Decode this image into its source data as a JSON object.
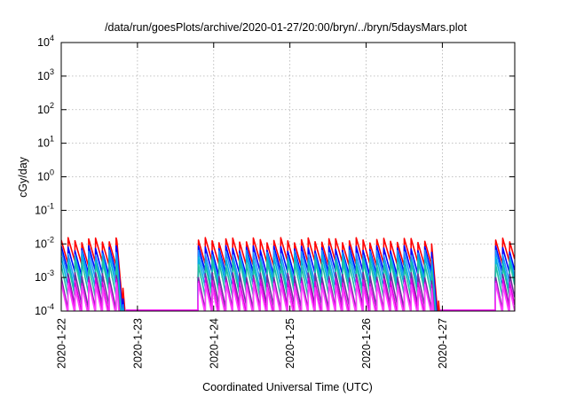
{
  "chart_data": {
    "type": "line",
    "title": "/data/run/goesPlots/archive/2020-01-27/20:00/bryn/../bryn/5daysMars.plot",
    "xlabel": "Coordinated Universal Time (UTC)",
    "ylabel": "cGy/day",
    "y_scale": "log",
    "ylim": [
      0.0001,
      10000
    ],
    "xlim": [
      0,
      5.95
    ],
    "x_origin": "2020-01-22",
    "grid": true,
    "x_ticks": [
      {
        "x": 0,
        "label": "2020-1-22"
      },
      {
        "x": 1,
        "label": "2020-1-23"
      },
      {
        "x": 2,
        "label": "2020-1-24"
      },
      {
        "x": 3,
        "label": "2020-1-25"
      },
      {
        "x": 4,
        "label": "2020-1-26"
      },
      {
        "x": 5,
        "label": "2020-1-27"
      }
    ],
    "y_ticks": [
      {
        "exp": "4"
      },
      {
        "exp": "3"
      },
      {
        "exp": "2"
      },
      {
        "exp": "1"
      },
      {
        "exp": "0"
      },
      {
        "exp": "-1"
      },
      {
        "exp": "-2"
      },
      {
        "exp": "-3"
      },
      {
        "exp": "-4"
      }
    ],
    "y_tick_base": "10",
    "active_segments": [
      {
        "start": 0.0,
        "end": 0.85,
        "sat_start": false,
        "sat_end": true
      },
      {
        "start": 1.8,
        "end": 4.97,
        "sat_start": true,
        "sat_end": true
      },
      {
        "start": 5.7,
        "end": 5.95,
        "sat_start": true,
        "sat_end": false
      }
    ],
    "sawtooth_period_days": 0.09,
    "series": [
      {
        "color": "#ff0000",
        "peak": 0.013,
        "trough": 0.0025
      },
      {
        "color": "#0000ff",
        "peak": 0.0075,
        "trough": 0.0013
      },
      {
        "color": "#2090ff",
        "peak": 0.0055,
        "trough": 0.0008
      },
      {
        "color": "#00b0e0",
        "peak": 0.004,
        "trough": 0.0005
      },
      {
        "color": "#20c0a0",
        "peak": 0.0028,
        "trough": 0.0003
      },
      {
        "color": "#7030a0",
        "peak": 0.0012,
        "trough": 0.00013
      },
      {
        "color": "#e000e0",
        "peak": 0.0008,
        "trough": 9e-05
      },
      {
        "color": "#ff40ff",
        "peak": 0.0006,
        "trough": 7e-05
      }
    ]
  }
}
